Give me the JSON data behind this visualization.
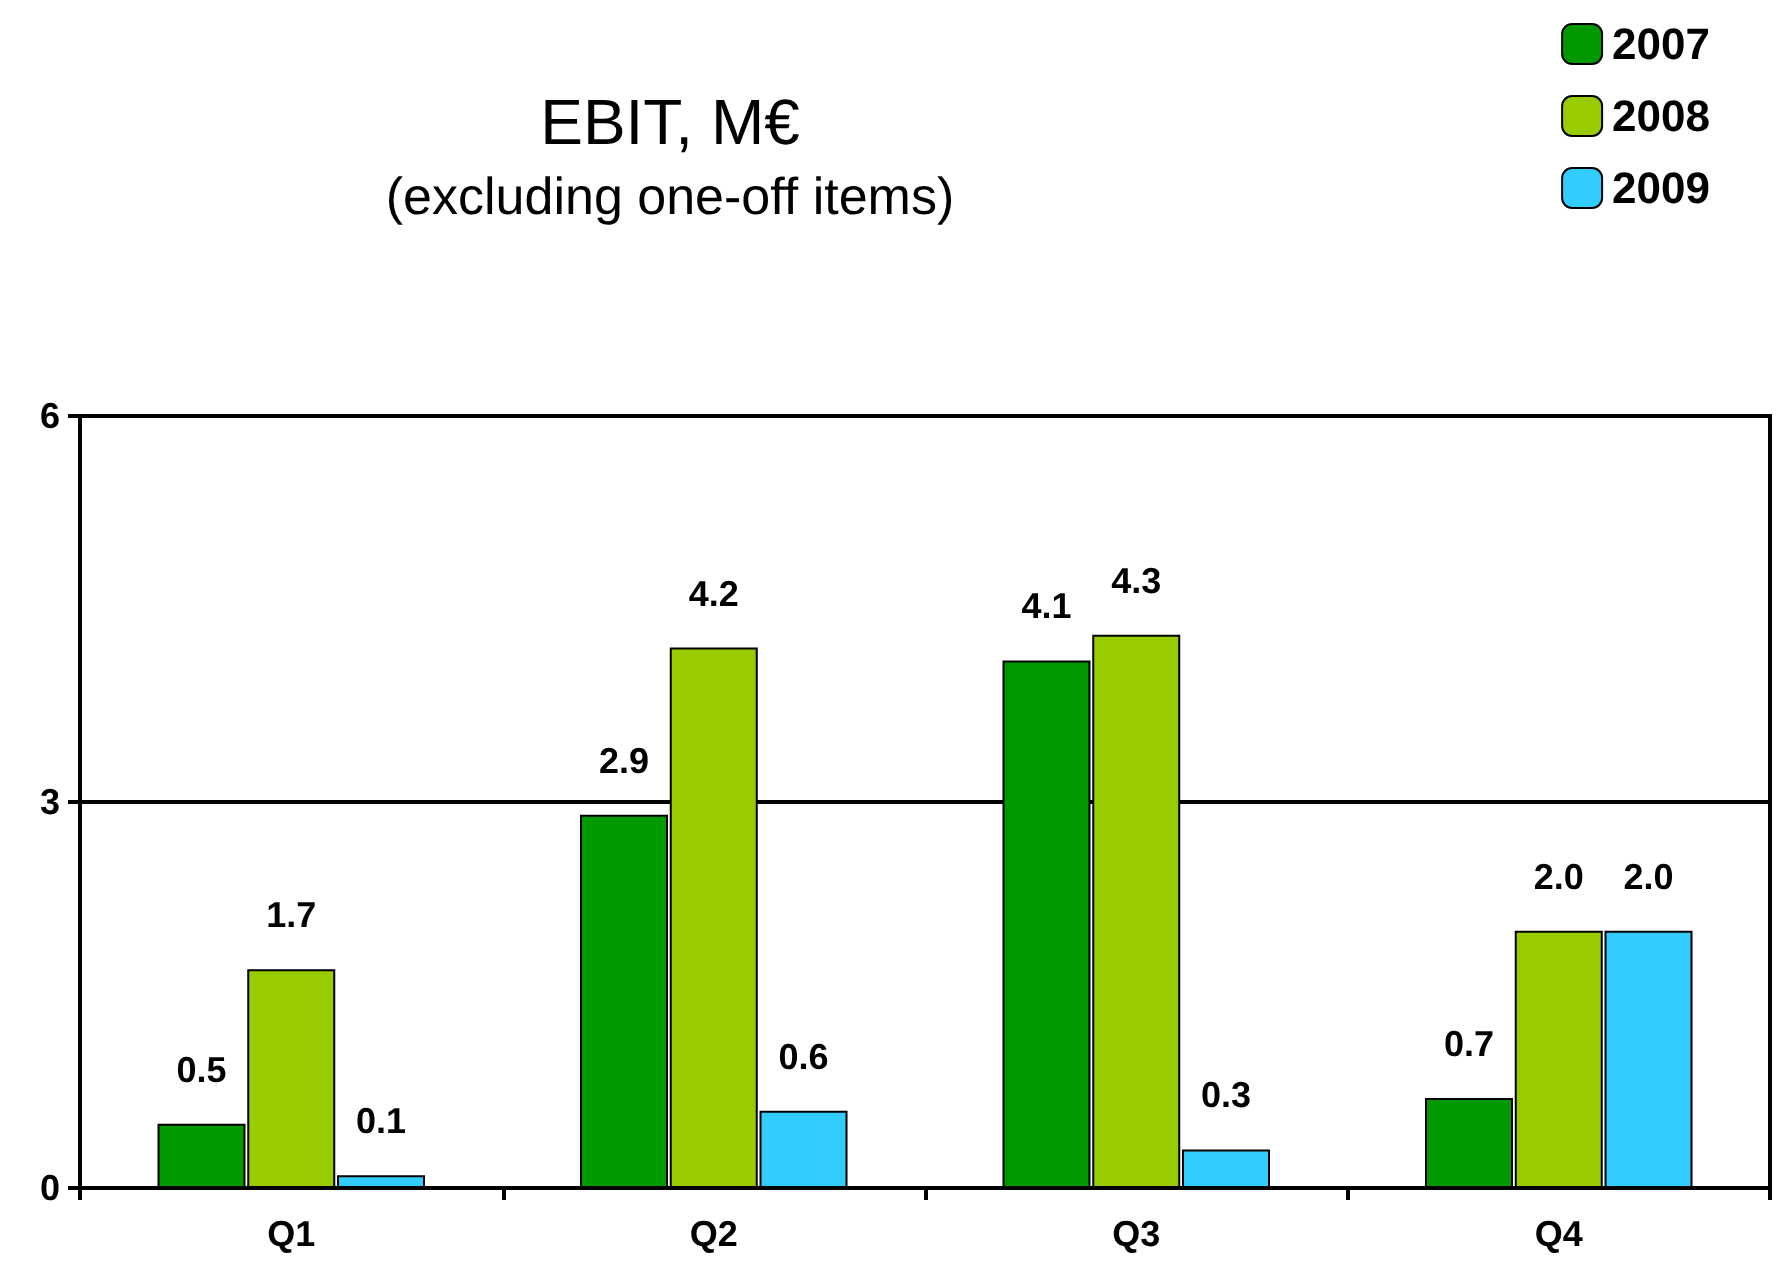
{
  "chart_data": {
    "type": "bar",
    "title": "EBIT, M€",
    "subtitle": "(excluding one-off items)",
    "categories": [
      "Q1",
      "Q2",
      "Q3",
      "Q4"
    ],
    "series": [
      {
        "name": "2007",
        "color": "#009900",
        "values": [
          0.5,
          2.9,
          4.1,
          0.7
        ],
        "value_labels": [
          "0.5",
          "2.9",
          "4.1",
          "0.7"
        ]
      },
      {
        "name": "2008",
        "color": "#99cc00",
        "values": [
          1.7,
          4.2,
          4.3,
          2.0
        ],
        "value_labels": [
          "1.7",
          "4.2",
          "4.3",
          "2.0"
        ]
      },
      {
        "name": "2009",
        "color": "#33ccff",
        "values": [
          0.1,
          0.6,
          0.3,
          2.0
        ],
        "value_labels": [
          "0.1",
          "0.6",
          "0.3",
          "2.0"
        ]
      }
    ],
    "ylim": [
      0,
      6
    ],
    "yticks": [
      0,
      3,
      6
    ],
    "grid": "y",
    "legend": "top right"
  }
}
